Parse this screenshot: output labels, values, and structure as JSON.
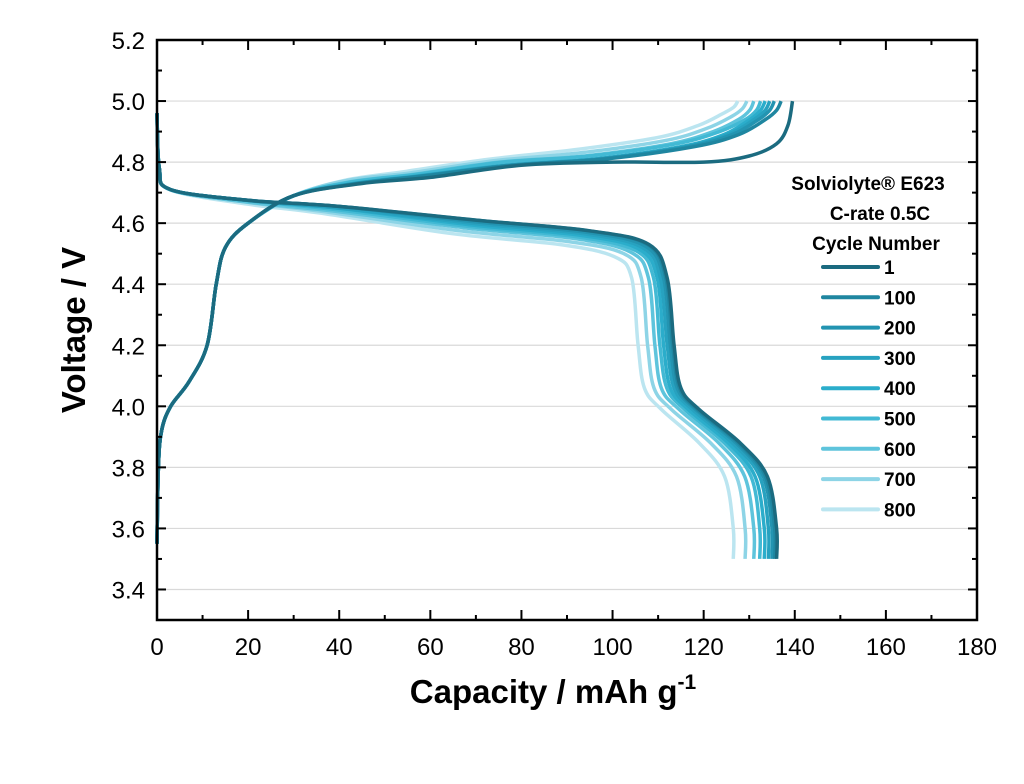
{
  "chart_data": {
    "type": "line",
    "xlabel": "Capacity / mAh g",
    "xlabel_superscript": "-1",
    "ylabel": "Voltage / V",
    "xlim": [
      0,
      180
    ],
    "ylim": [
      3.3,
      5.2
    ],
    "x_ticks": [
      "0",
      "20",
      "40",
      "60",
      "80",
      "100",
      "120",
      "140",
      "160",
      "180"
    ],
    "y_ticks": [
      "3.4",
      "3.6",
      "3.8",
      "4.0",
      "4.2",
      "4.4",
      "4.6",
      "4.8",
      "5.0",
      "5.2"
    ],
    "grid": "horizontal major gridlines",
    "legend_placement": "right",
    "legend_title": [
      "Solviolyte® E623",
      "C-rate 0.5C",
      "Cycle Number"
    ],
    "series": [
      {
        "name": "1",
        "color": "#1b6b80",
        "charge": {
          "x": [
            0,
            0.3,
            1,
            3,
            7,
            11,
            13,
            15,
            20,
            30,
            45,
            60,
            80,
            100,
            120,
            130,
            136,
            138.5,
            139.5
          ],
          "y": [
            3.55,
            3.8,
            3.92,
            4.0,
            4.08,
            4.2,
            4.4,
            4.52,
            4.6,
            4.69,
            4.73,
            4.75,
            4.79,
            4.8,
            4.8,
            4.82,
            4.86,
            4.92,
            5.0
          ]
        },
        "discharge": {
          "x": [
            0,
            0.5,
            3,
            20,
            40,
            70,
            95,
            108,
            112,
            113.5,
            115,
            119,
            128,
            134,
            136,
            136
          ],
          "y": [
            4.96,
            4.78,
            4.71,
            4.675,
            4.655,
            4.61,
            4.575,
            4.53,
            4.42,
            4.2,
            4.06,
            3.99,
            3.88,
            3.77,
            3.6,
            3.5
          ]
        }
      },
      {
        "name": "100",
        "color": "#1f86a0",
        "charge": {
          "x": [
            0,
            0.3,
            1,
            3,
            7,
            11,
            13,
            15,
            20,
            30,
            44.2,
            58.9,
            78.6,
            98.2,
            117.8,
            127.7,
            133.6,
            136,
            137
          ],
          "y": [
            3.55,
            3.8,
            3.92,
            4.0,
            4.08,
            4.2,
            4.4,
            4.52,
            4.6,
            4.69,
            4.73,
            4.755,
            4.79,
            4.81,
            4.85,
            4.89,
            4.94,
            4.97,
            5.0
          ]
        },
        "discharge": {
          "x": [
            0,
            0.5,
            3,
            19.9,
            39.9,
            69.8,
            94.7,
            107.7,
            111.7,
            113.2,
            114.7,
            118.6,
            127.6,
            133.6,
            135.6,
            135.6
          ],
          "y": [
            4.96,
            4.78,
            4.71,
            4.675,
            4.655,
            4.61,
            4.575,
            4.53,
            4.42,
            4.2,
            4.06,
            3.99,
            3.88,
            3.77,
            3.6,
            3.5
          ]
        }
      },
      {
        "name": "200",
        "color": "#2394b1",
        "charge": {
          "x": [
            0,
            0.3,
            1,
            3,
            7,
            11,
            13,
            15,
            20,
            30,
            43.7,
            58.3,
            77.7,
            97.1,
            116.5,
            126.2,
            132.1,
            134.5,
            135.5
          ],
          "y": [
            3.55,
            3.8,
            3.92,
            4.0,
            4.08,
            4.2,
            4.4,
            4.52,
            4.6,
            4.69,
            4.73,
            4.755,
            4.79,
            4.81,
            4.85,
            4.89,
            4.94,
            4.97,
            5.0
          ]
        },
        "discharge": {
          "x": [
            0,
            0.5,
            3,
            19.9,
            39.7,
            69.5,
            94.3,
            107.2,
            111.2,
            112.7,
            114.2,
            118.2,
            127.1,
            133.1,
            135,
            135
          ],
          "y": [
            4.96,
            4.78,
            4.71,
            4.675,
            4.655,
            4.605,
            4.57,
            4.525,
            4.42,
            4.2,
            4.06,
            3.99,
            3.88,
            3.77,
            3.6,
            3.5
          ]
        }
      },
      {
        "name": "300",
        "color": "#27a2c0",
        "charge": {
          "x": [
            0,
            0.3,
            1,
            3,
            7,
            11,
            13,
            15,
            20,
            30,
            43.4,
            57.8,
            77.1,
            96.4,
            115.7,
            125.3,
            131.1,
            133.5,
            134.5
          ],
          "y": [
            3.55,
            3.8,
            3.92,
            4.0,
            4.08,
            4.2,
            4.4,
            4.52,
            4.6,
            4.69,
            4.73,
            4.755,
            4.79,
            4.81,
            4.85,
            4.89,
            4.94,
            4.97,
            5.0
          ]
        },
        "discharge": {
          "x": [
            0,
            0.5,
            3,
            19.7,
            39.5,
            69.1,
            93.8,
            106.6,
            110.5,
            112,
            113.5,
            117.5,
            126.3,
            132.3,
            134.2,
            134.2
          ],
          "y": [
            4.96,
            4.78,
            4.71,
            4.675,
            4.65,
            4.6,
            4.565,
            4.52,
            4.42,
            4.2,
            4.06,
            3.99,
            3.88,
            3.77,
            3.6,
            3.5
          ]
        }
      },
      {
        "name": "400",
        "color": "#2badcb",
        "charge": {
          "x": [
            0,
            0.3,
            1,
            3,
            7,
            11,
            13,
            15,
            20,
            30,
            43.1,
            57.4,
            76.6,
            95.7,
            114.8,
            124.4,
            130.2,
            132.5,
            133.5
          ],
          "y": [
            3.55,
            3.8,
            3.92,
            4.0,
            4.08,
            4.2,
            4.4,
            4.52,
            4.6,
            4.69,
            4.73,
            4.755,
            4.79,
            4.81,
            4.85,
            4.89,
            4.94,
            4.97,
            5.0
          ]
        },
        "discharge": {
          "x": [
            0,
            0.5,
            2.9,
            19.6,
            39.2,
            68.6,
            93.1,
            105.8,
            109.8,
            111.2,
            112.7,
            116.6,
            125.4,
            131.3,
            133.3,
            133.3
          ],
          "y": [
            4.96,
            4.78,
            4.71,
            4.675,
            4.65,
            4.595,
            4.56,
            4.515,
            4.42,
            4.2,
            4.06,
            3.99,
            3.88,
            3.77,
            3.6,
            3.5
          ]
        }
      },
      {
        "name": "500",
        "color": "#42b9d4",
        "charge": {
          "x": [
            0,
            0.3,
            1,
            3,
            7,
            11,
            13,
            15,
            20,
            30,
            42.8,
            57,
            76,
            95,
            114,
            123.5,
            129.2,
            131.6,
            132.5
          ],
          "y": [
            3.55,
            3.8,
            3.92,
            4.0,
            4.08,
            4.2,
            4.4,
            4.52,
            4.6,
            4.69,
            4.735,
            4.76,
            4.8,
            4.82,
            4.86,
            4.9,
            4.94,
            4.97,
            5.0
          ]
        },
        "discharge": {
          "x": [
            0,
            0.5,
            2.9,
            19.5,
            38.9,
            68.1,
            92.4,
            105.1,
            109,
            110.4,
            111.9,
            115.8,
            124.5,
            130.4,
            132.3,
            132.3
          ],
          "y": [
            4.96,
            4.78,
            4.71,
            4.675,
            4.645,
            4.59,
            4.555,
            4.51,
            4.42,
            4.2,
            4.06,
            3.99,
            3.88,
            3.77,
            3.6,
            3.5
          ]
        }
      },
      {
        "name": "600",
        "color": "#5ec4dc",
        "charge": {
          "x": [
            0,
            0.3,
            1,
            3,
            7,
            11,
            13,
            15,
            20,
            30,
            42.3,
            56.3,
            75.1,
            93.9,
            112.7,
            122.1,
            127.7,
            130.1,
            131
          ],
          "y": [
            3.55,
            3.8,
            3.92,
            4.0,
            4.08,
            4.2,
            4.4,
            4.52,
            4.6,
            4.69,
            4.735,
            4.76,
            4.8,
            4.82,
            4.86,
            4.9,
            4.94,
            4.97,
            5.0
          ]
        },
        "discharge": {
          "x": [
            0,
            0.5,
            2.9,
            19.3,
            38.5,
            67.4,
            91.5,
            104,
            107.9,
            109.3,
            110.7,
            114.6,
            123.3,
            129,
            131,
            131
          ],
          "y": [
            4.96,
            4.78,
            4.71,
            4.67,
            4.64,
            4.585,
            4.55,
            4.505,
            4.42,
            4.2,
            4.06,
            3.99,
            3.88,
            3.77,
            3.6,
            3.5
          ]
        }
      },
      {
        "name": "700",
        "color": "#8dd4e6",
        "charge": {
          "x": [
            0,
            0.3,
            1,
            3,
            7,
            11,
            13,
            15,
            20,
            30,
            41.8,
            55.7,
            74.2,
            92.8,
            111.4,
            120.6,
            126.2,
            128.5,
            129.5
          ],
          "y": [
            3.55,
            3.8,
            3.92,
            4.0,
            4.08,
            4.2,
            4.4,
            4.52,
            4.6,
            4.69,
            4.74,
            4.765,
            4.805,
            4.83,
            4.87,
            4.91,
            4.95,
            4.975,
            5.0
          ]
        },
        "discharge": {
          "x": [
            0,
            0.5,
            2.8,
            19,
            38,
            66.4,
            90.2,
            102.5,
            106.3,
            107.7,
            109.1,
            112.9,
            121.5,
            127.2,
            129.1,
            129.1
          ],
          "y": [
            4.96,
            4.78,
            4.71,
            4.67,
            4.635,
            4.575,
            4.54,
            4.5,
            4.42,
            4.2,
            4.06,
            3.99,
            3.88,
            3.77,
            3.6,
            3.5
          ]
        }
      },
      {
        "name": "800",
        "color": "#bbe5f0",
        "charge": {
          "x": [
            0,
            0.3,
            1,
            3,
            7,
            11,
            13,
            15,
            20,
            30,
            41.1,
            54.8,
            73.1,
            91.4,
            109.7,
            118.8,
            124.3,
            126.6,
            127.5
          ],
          "y": [
            3.55,
            3.8,
            3.92,
            4.0,
            4.08,
            4.2,
            4.4,
            4.52,
            4.6,
            4.69,
            4.74,
            4.77,
            4.81,
            4.84,
            4.88,
            4.92,
            4.96,
            4.98,
            5.0
          ]
        },
        "discharge": {
          "x": [
            0,
            0.5,
            2.8,
            18.6,
            37.2,
            65.1,
            88.4,
            100.4,
            104.2,
            105.6,
            107,
            110.7,
            119,
            124.6,
            126.5,
            126.5
          ],
          "y": [
            4.96,
            4.78,
            4.71,
            4.665,
            4.63,
            4.565,
            4.53,
            4.49,
            4.42,
            4.2,
            4.06,
            3.99,
            3.88,
            3.77,
            3.6,
            3.5
          ]
        }
      }
    ]
  }
}
